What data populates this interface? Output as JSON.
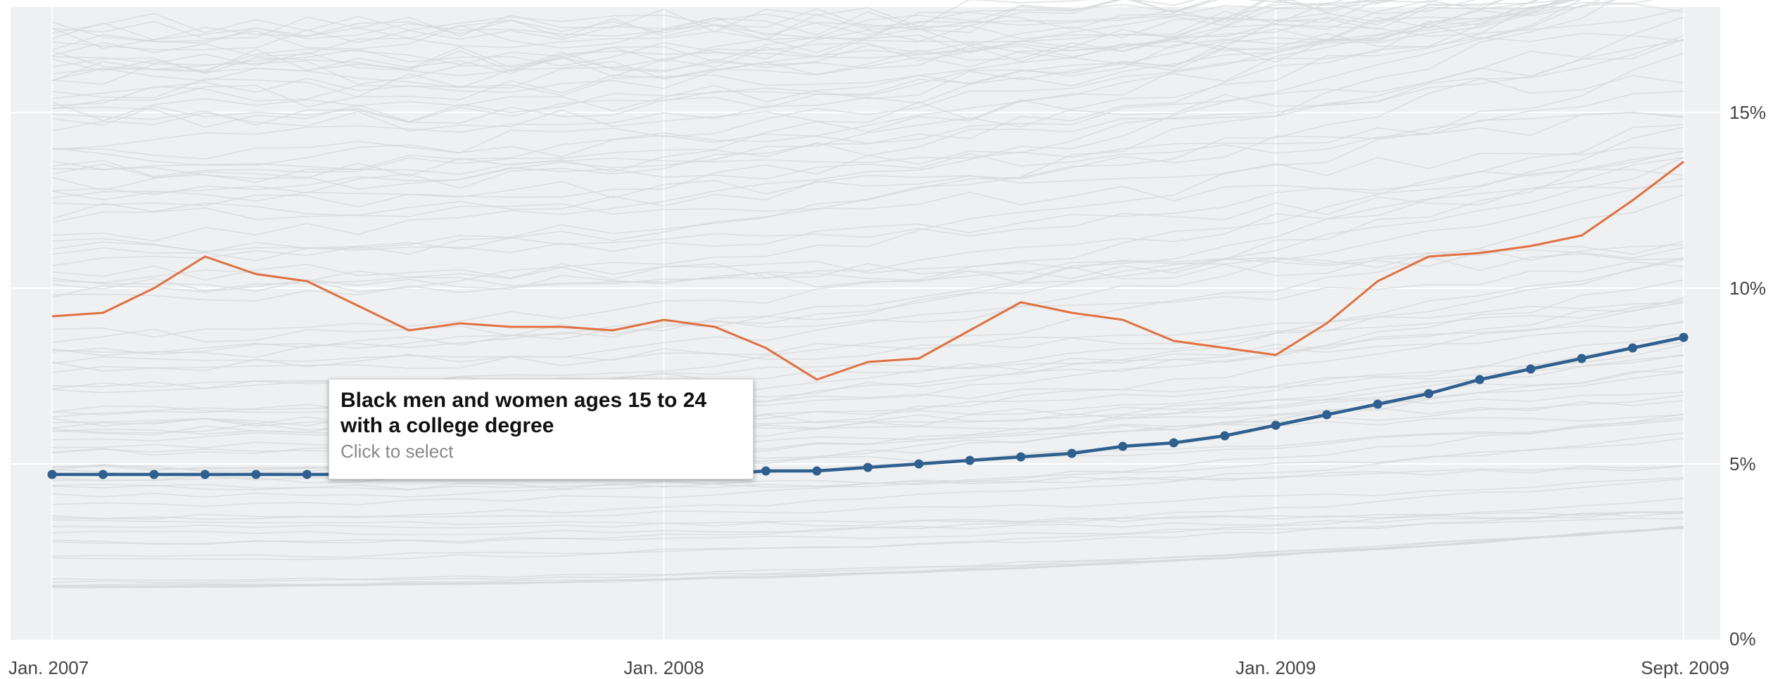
{
  "chart_data": {
    "type": "line",
    "title": "",
    "xlabel": "",
    "ylabel": "",
    "x_axis": {
      "start": "2007-01",
      "end": "2009-09",
      "tick_labels": [
        "Jan. 2007",
        "Jan. 2008",
        "Jan. 2009",
        "Sept. 2009"
      ],
      "tick_dates": [
        "2007-01",
        "2008-01",
        "2009-01",
        "2009-09"
      ]
    },
    "y_axis": {
      "ylim": [
        0,
        18
      ],
      "ticks": [
        0,
        5,
        10,
        15
      ],
      "tick_labels": [
        "0%",
        "5%",
        "10%",
        "15%"
      ],
      "position": "right"
    },
    "grid": true,
    "legend": "none",
    "months": [
      "2007-01",
      "2007-02",
      "2007-03",
      "2007-04",
      "2007-05",
      "2007-06",
      "2007-07",
      "2007-08",
      "2007-09",
      "2007-10",
      "2007-11",
      "2007-12",
      "2008-01",
      "2008-02",
      "2008-03",
      "2008-04",
      "2008-05",
      "2008-06",
      "2008-07",
      "2008-08",
      "2008-09",
      "2008-10",
      "2008-11",
      "2008-12",
      "2009-01",
      "2009-02",
      "2009-03",
      "2009-04",
      "2009-05",
      "2009-06",
      "2009-07",
      "2009-08",
      "2009-09"
    ],
    "series": [
      {
        "role": "highlighted",
        "color": "#e07040",
        "values": [
          9.2,
          9.3,
          10.0,
          10.9,
          10.4,
          10.2,
          9.5,
          8.8,
          9.0,
          8.9,
          8.9,
          8.8,
          9.1,
          8.9,
          8.3,
          7.4,
          7.9,
          8.0,
          8.8,
          9.6,
          9.3,
          9.1,
          8.5,
          8.3,
          8.1,
          9.0,
          10.2,
          10.9,
          11.0,
          11.2,
          11.5,
          12.5,
          13.6
        ]
      },
      {
        "role": "selected",
        "color": "#2f5f8f",
        "values": [
          4.7,
          4.7,
          4.7,
          4.7,
          4.7,
          4.7,
          4.7,
          4.7,
          4.7,
          4.7,
          4.7,
          4.7,
          4.7,
          4.7,
          4.8,
          4.8,
          4.9,
          5.0,
          5.1,
          5.2,
          5.3,
          5.5,
          5.6,
          5.8,
          6.1,
          6.4,
          6.7,
          7.0,
          7.4,
          7.7,
          8.0,
          8.3,
          8.6
        ]
      }
    ],
    "background_series_count": 100,
    "background_start_range": [
      1.5,
      17.8
    ],
    "background_end_range": [
      3.2,
      19.0
    ]
  },
  "tooltip": {
    "title_line1": "Black men and women ages 15 to 24",
    "title_line2": "with a college degree",
    "hint": "Click to select"
  },
  "colors": {
    "plot_background": "#eef0f1",
    "gridline": "#ffffff",
    "background_line": "#d6d8da",
    "highlight_line": "#e07040",
    "selected_line": "#2f5f8f"
  }
}
